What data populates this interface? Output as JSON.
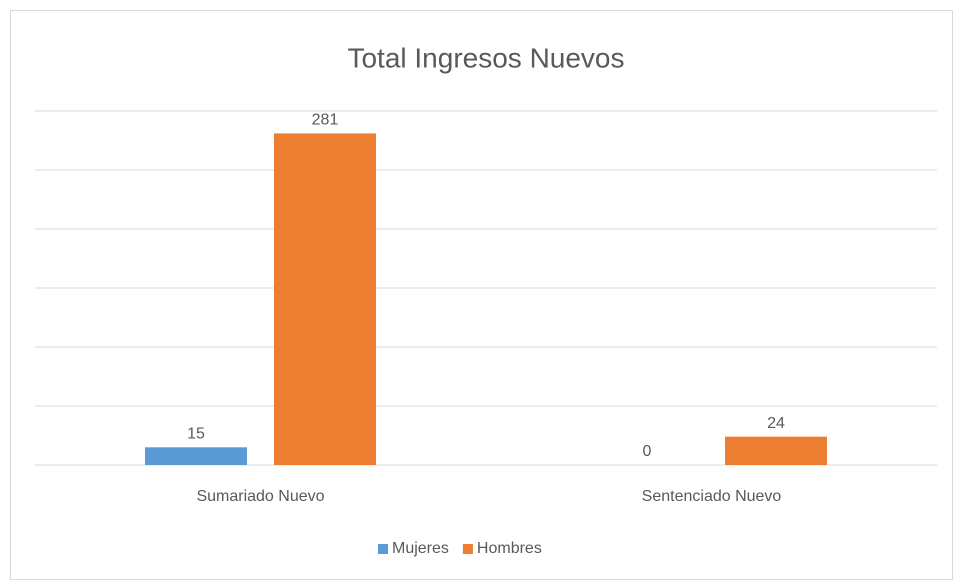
{
  "chart_data": {
    "type": "bar",
    "title": "Total Ingresos Nuevos",
    "categories": [
      "Sumariado Nuevo",
      "Sentenciado Nuevo"
    ],
    "series": [
      {
        "name": "Mujeres",
        "color": "#5b9bd5",
        "values": [
          15,
          0
        ]
      },
      {
        "name": "Hombres",
        "color": "#ed7d31",
        "values": [
          281,
          24
        ]
      }
    ],
    "ylim": [
      0,
      300
    ],
    "yticks": [
      0,
      50,
      100,
      150,
      200,
      250,
      300
    ],
    "grid": true,
    "legend": "bottom"
  }
}
